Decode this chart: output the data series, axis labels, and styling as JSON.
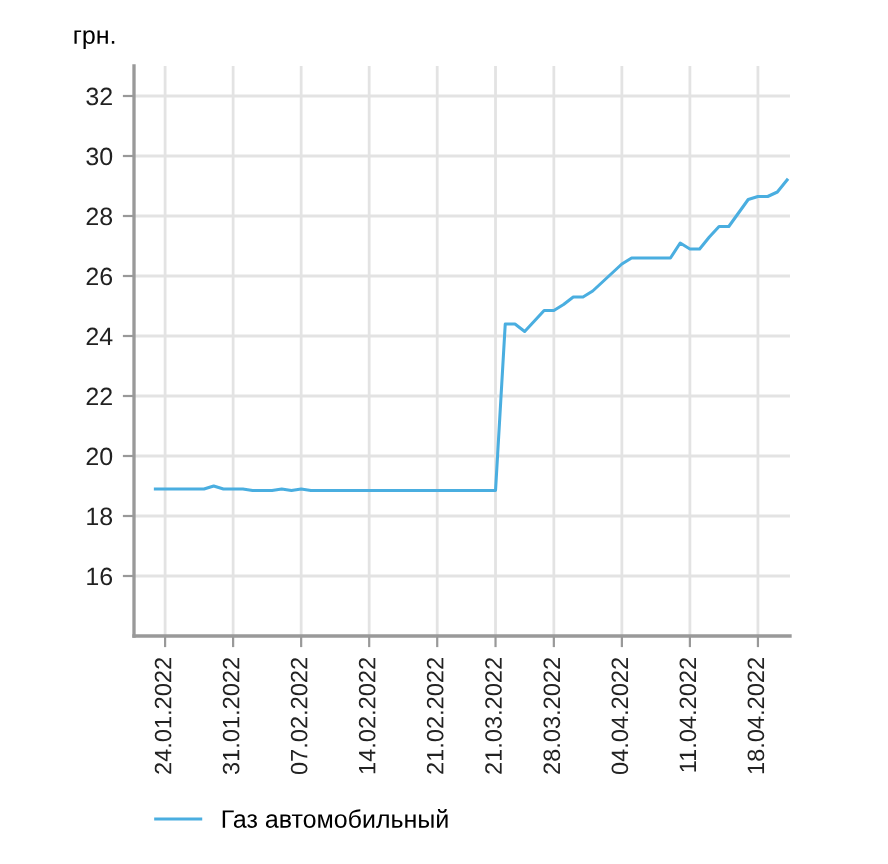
{
  "chart_data": {
    "type": "line",
    "ylabel": "грн.",
    "categories": [
      null,
      "24.01.2022",
      null,
      null,
      null,
      null,
      null,
      null,
      "31.01.2022",
      null,
      null,
      null,
      null,
      null,
      null,
      "07.02.2022",
      null,
      null,
      null,
      null,
      null,
      null,
      "14.02.2022",
      null,
      null,
      null,
      null,
      null,
      null,
      "21.02.2022",
      null,
      null,
      null,
      null,
      null,
      "21.03.2022",
      null,
      null,
      null,
      null,
      null,
      "28.03.2022",
      null,
      null,
      null,
      null,
      null,
      null,
      "04.04.2022",
      null,
      null,
      null,
      null,
      null,
      null,
      "11.04.2022",
      null,
      null,
      null,
      null,
      null,
      null,
      "18.04.2022",
      null,
      null,
      null
    ],
    "series": [
      {
        "name": "Газ автомобильный",
        "color": "#4aaee0",
        "values": [
          18.9,
          18.9,
          18.9,
          18.9,
          18.9,
          18.9,
          19.0,
          18.9,
          18.9,
          18.9,
          18.85,
          18.85,
          18.85,
          18.9,
          18.85,
          18.9,
          18.85,
          18.85,
          18.85,
          18.85,
          18.85,
          18.85,
          18.85,
          18.85,
          18.85,
          18.85,
          18.85,
          18.85,
          18.85,
          18.85,
          18.85,
          18.85,
          18.85,
          18.85,
          18.85,
          18.85,
          24.4,
          24.4,
          24.15,
          24.5,
          24.85,
          24.85,
          25.05,
          25.3,
          25.3,
          25.5,
          25.8,
          26.1,
          26.4,
          26.6,
          26.6,
          26.6,
          26.6,
          26.6,
          27.1,
          26.9,
          26.9,
          27.3,
          27.65,
          27.65,
          28.1,
          28.55,
          28.65,
          28.65,
          28.8,
          29.2
        ]
      }
    ],
    "ylim": [
      14,
      33
    ],
    "yticks": [
      16,
      18,
      20,
      22,
      24,
      26,
      28,
      30,
      32
    ],
    "grid": true,
    "legend": "bottom left",
    "line_style": "solid",
    "marker": "none"
  }
}
